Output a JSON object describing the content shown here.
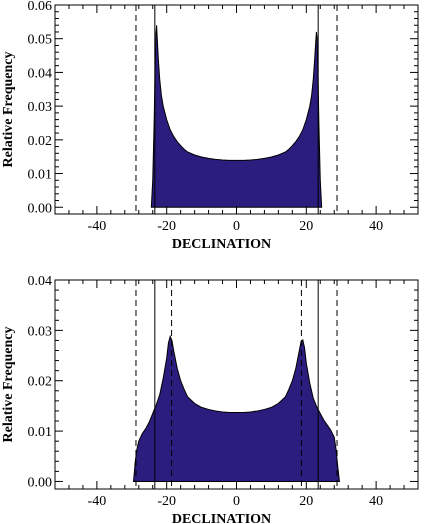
{
  "colors": {
    "fill": "#2b1d7e",
    "outline": "#000000",
    "frame": "#000000"
  },
  "chart_data": [
    {
      "type": "area",
      "title": "",
      "xlabel": "DECLINATION",
      "ylabel": "Relative Frequency",
      "xlim": [
        -52,
        52
      ],
      "ylim": [
        -0.002,
        0.06
      ],
      "xticks": [
        -40,
        -20,
        0,
        20,
        40
      ],
      "yticks": [
        0.0,
        0.01,
        0.02,
        0.03,
        0.04,
        0.05,
        0.06
      ],
      "ytick_labels": [
        "0.00",
        "0.01",
        "0.02",
        "0.03",
        "0.04",
        "0.05",
        "0.06"
      ],
      "grid": false,
      "vlines_solid": [
        -23.4,
        23.4
      ],
      "vlines_dashed": [
        -28.8,
        28.8
      ],
      "series": [
        {
          "x": [
            -24.4,
            -24.0,
            -23.6,
            -23.3,
            -23.1,
            -22.9,
            -22.7,
            -22.4,
            -22.0,
            -21.5,
            -21.0,
            -20.0,
            -19.0,
            -18.0,
            -17.0,
            -16.0,
            -15.0,
            -14.0,
            -12.0,
            -10.0,
            -8.0,
            -6.0,
            -4.0,
            -2.0,
            0.0,
            2.0,
            4.0,
            6.0,
            8.0,
            10.0,
            12.0,
            14.0,
            15.0,
            16.0,
            17.0,
            18.0,
            19.0,
            20.0,
            21.0,
            21.5,
            22.0,
            22.4,
            22.7,
            22.9,
            23.1,
            23.3,
            23.6,
            24.0,
            24.4
          ],
          "y": [
            0.0,
            0.008,
            0.025,
            0.042,
            0.051,
            0.054,
            0.05,
            0.044,
            0.038,
            0.033,
            0.03,
            0.026,
            0.023,
            0.021,
            0.0195,
            0.0183,
            0.0172,
            0.0164,
            0.0155,
            0.0149,
            0.0145,
            0.0142,
            0.014,
            0.0139,
            0.0139,
            0.0139,
            0.014,
            0.0142,
            0.0145,
            0.0149,
            0.0155,
            0.0164,
            0.0172,
            0.0183,
            0.0195,
            0.021,
            0.023,
            0.026,
            0.03,
            0.033,
            0.038,
            0.044,
            0.049,
            0.052,
            0.05,
            0.042,
            0.025,
            0.008,
            0.0
          ]
        }
      ]
    },
    {
      "type": "area",
      "title": "",
      "xlabel": "DECLINATION",
      "ylabel": "Relative Frequency",
      "xlim": [
        -52,
        52
      ],
      "ylim": [
        -0.0015,
        0.04
      ],
      "xticks": [
        -40,
        -20,
        0,
        20,
        40
      ],
      "yticks": [
        0.0,
        0.01,
        0.02,
        0.03,
        0.04
      ],
      "ytick_labels": [
        "0.00",
        "0.01",
        "0.02",
        "0.03",
        "0.04"
      ],
      "grid": false,
      "vlines_solid": [
        -23.4,
        23.4
      ],
      "vlines_dashed": [
        -28.8,
        -18.6,
        18.6,
        28.8
      ],
      "series": [
        {
          "x": [
            -29.5,
            -29.0,
            -28.5,
            -28.0,
            -27.0,
            -26.0,
            -25.0,
            -24.0,
            -23.0,
            -22.0,
            -21.0,
            -20.0,
            -19.5,
            -19.0,
            -18.5,
            -18.0,
            -17.0,
            -16.0,
            -15.0,
            -14.0,
            -12.0,
            -10.0,
            -8.0,
            -6.0,
            -4.0,
            -2.0,
            0.0,
            2.0,
            4.0,
            6.0,
            8.0,
            10.0,
            12.0,
            14.0,
            15.0,
            16.0,
            17.0,
            18.0,
            18.5,
            19.0,
            19.5,
            20.0,
            21.0,
            22.0,
            23.0,
            24.0,
            25.0,
            26.0,
            27.0,
            28.0,
            28.5,
            29.0,
            29.5
          ],
          "y": [
            0.0,
            0.004,
            0.0065,
            0.008,
            0.0095,
            0.0105,
            0.0118,
            0.0135,
            0.0152,
            0.0172,
            0.0205,
            0.0245,
            0.0275,
            0.0288,
            0.028,
            0.026,
            0.0225,
            0.02,
            0.0183,
            0.0168,
            0.0155,
            0.0147,
            0.0143,
            0.014,
            0.0138,
            0.0137,
            0.0137,
            0.0137,
            0.0138,
            0.014,
            0.0143,
            0.0147,
            0.0155,
            0.0168,
            0.0183,
            0.02,
            0.0225,
            0.026,
            0.0278,
            0.0281,
            0.0265,
            0.0235,
            0.0195,
            0.0165,
            0.0148,
            0.0135,
            0.0122,
            0.0112,
            0.0102,
            0.0088,
            0.0065,
            0.003,
            0.0
          ]
        }
      ]
    }
  ]
}
